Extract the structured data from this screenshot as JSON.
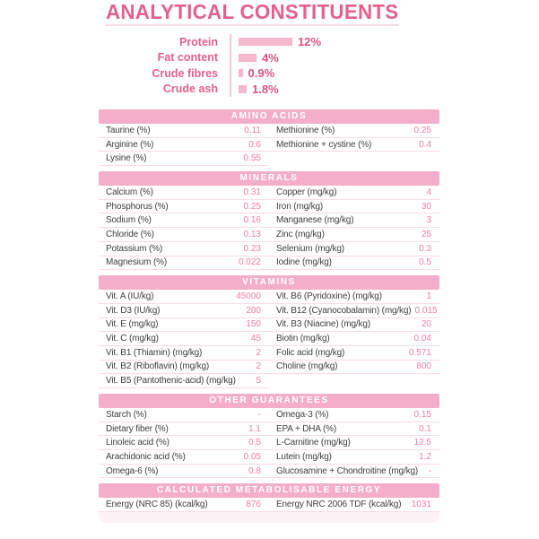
{
  "page": {
    "title": "ANALYTICAL CONSTITUENTS"
  },
  "colors": {
    "accent_pink": "#E4618E",
    "value_pink": "#EF7EA6",
    "band_pink": "#F4AECA",
    "bar_pink": "#F7B7CD",
    "label_gray": "#3F3F3F"
  },
  "chart_data": {
    "type": "bar",
    "orientation": "horizontal",
    "categories": [
      "Protein",
      "Fat content",
      "Crude fibres",
      "Crude ash"
    ],
    "values": [
      12,
      4,
      0.9,
      1.8
    ],
    "value_labels": [
      "12%",
      "4%",
      "0.9%",
      "1.8%"
    ],
    "unit": "%",
    "title": "",
    "xlabel": "",
    "ylabel": "",
    "xlim": [
      0,
      14
    ],
    "grid": false,
    "legend": "none",
    "bar_color": "#F7B7CD"
  },
  "sections": [
    {
      "header": "AMINO ACIDS",
      "left": [
        {
          "label": "Taurine (%)",
          "value": "0.11"
        },
        {
          "label": "Arginine (%)",
          "value": "0.6"
        },
        {
          "label": "Lysine (%)",
          "value": "0.55"
        }
      ],
      "right": [
        {
          "label": "Methionine (%)",
          "value": "0.25"
        },
        {
          "label": "Methionine + cystine (%)",
          "value": "0.4"
        }
      ]
    },
    {
      "header": "MINERALS",
      "left": [
        {
          "label": "Calcium (%)",
          "value": "0.31"
        },
        {
          "label": "Phosphorus (%)",
          "value": "0.25"
        },
        {
          "label": "Sodium (%)",
          "value": "0.16"
        },
        {
          "label": "Chloride (%)",
          "value": "0.13"
        },
        {
          "label": "Potassium (%)",
          "value": "0.23"
        },
        {
          "label": "Magnesium (%)",
          "value": "0.022"
        }
      ],
      "right": [
        {
          "label": "Copper (mg/kg)",
          "value": "4"
        },
        {
          "label": "Iron (mg/kg)",
          "value": "30"
        },
        {
          "label": "Manganese (mg/kg)",
          "value": "3"
        },
        {
          "label": "Zinc (mg/kg)",
          "value": "25"
        },
        {
          "label": "Selenium (mg/kg)",
          "value": "0.3"
        },
        {
          "label": "Iodine (mg/kg)",
          "value": "0.5"
        }
      ]
    },
    {
      "header": "VITAMINS",
      "left": [
        {
          "label": "Vit. A (IU/kg)",
          "value": "45000"
        },
        {
          "label": "Vit. D3 (IU/kg)",
          "value": "200"
        },
        {
          "label": "Vit. E (mg/kg)",
          "value": "150"
        },
        {
          "label": "Vit. C (mg/kg)",
          "value": "45"
        },
        {
          "label": "Vit. B1 (Thiamin) (mg/kg)",
          "value": "2"
        },
        {
          "label": "Vit. B2 (Riboflavin) (mg/kg)",
          "value": "2"
        },
        {
          "label": "Vit. B5 (Pantothenic-acid) (mg/kg)",
          "value": "5"
        }
      ],
      "right": [
        {
          "label": "Vit. B6 (Pyridoxine) (mg/kg)",
          "value": "1"
        },
        {
          "label": "Vit. B12 (Cyanocobalamin) (mg/kg)",
          "value": "0.015"
        },
        {
          "label": "Vit. B3 (Niacine) (mg/kg)",
          "value": "20"
        },
        {
          "label": "Biotin (mg/kg)",
          "value": "0.04"
        },
        {
          "label": "Folic acid (mg/kg)",
          "value": "0.571"
        },
        {
          "label": "Choline (mg/kg)",
          "value": "800"
        }
      ]
    },
    {
      "header": "OTHER GUARANTEES",
      "left": [
        {
          "label": "Starch (%)",
          "value": "-"
        },
        {
          "label": "Dietary fiber (%)",
          "value": "1.1"
        },
        {
          "label": "Linoleic acid (%)",
          "value": "0.5"
        },
        {
          "label": "Arachidonic acid (%)",
          "value": "0.05"
        },
        {
          "label": "Omega-6 (%)",
          "value": "0.8"
        }
      ],
      "right": [
        {
          "label": "Omega-3 (%)",
          "value": "0.15"
        },
        {
          "label": "EPA + DHA (%)",
          "value": "0.1"
        },
        {
          "label": "L-Carnitine (mg/kg)",
          "value": "12.5"
        },
        {
          "label": "Lutein (mg/kg)",
          "value": "1.2"
        },
        {
          "label": "Glucosamine + Chondroitine (mg/kg)",
          "value": "-"
        }
      ]
    },
    {
      "header": "CALCULATED METABOLISABLE ENERGY",
      "left": [
        {
          "label": "Energy (NRC 85) (kcal/kg)",
          "value": "876"
        }
      ],
      "right": [
        {
          "label": "Energy NRC 2006 TDF (kcal/kg)",
          "value": "1031"
        }
      ]
    }
  ]
}
